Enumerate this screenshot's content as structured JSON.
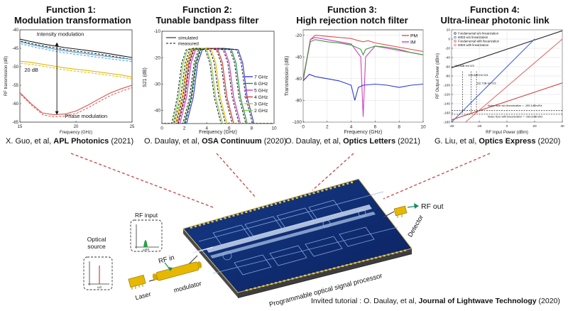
{
  "panels": [
    {
      "heading": "Function 1:",
      "title": "Modulation transformation",
      "cite_authors": "X. Guo, et al, ",
      "cite_journal": "APL Photonics",
      "cite_year": " (2021)",
      "chart_data": {
        "type": "line",
        "xlabel": "Frequency (GHz)",
        "ylabel": "RF transmission (dB)",
        "xlim": [
          15,
          25
        ],
        "ylim": [
          -65,
          -40
        ],
        "xticks": [
          "15",
          "20",
          "25"
        ],
        "yticks": [
          "-40",
          "-45",
          "-50",
          "-55",
          "-60",
          "-65"
        ],
        "annotations": [
          "Intensity modulation",
          "20 dB",
          "Phase modulation"
        ],
        "series": [
          {
            "color": "#1a1a1a",
            "x": [
              15,
              16,
              17,
              18,
              19,
              20,
              21,
              22,
              23,
              24,
              25
            ],
            "y": [
              -42.5,
              -43.2,
              -43.8,
              -44.3,
              -44.8,
              -45.2,
              -45.6,
              -46.0,
              -46.5,
              -47.0,
              -47.5
            ]
          },
          {
            "color": "#4a9ad4",
            "x": [
              15,
              16,
              17,
              18,
              19,
              20,
              21,
              22,
              23,
              24,
              25
            ],
            "y": [
              -43.2,
              -44.0,
              -44.6,
              -45.2,
              -45.7,
              -46.1,
              -46.5,
              -46.9,
              -47.3,
              -47.7,
              -48.0
            ]
          },
          {
            "color": "#e6b800",
            "x": [
              15,
              16,
              17,
              18,
              19,
              20,
              21,
              22,
              23,
              24,
              25
            ],
            "y": [
              -48.5,
              -48.8,
              -49.3,
              -49.8,
              -50.3,
              -50.7,
              -51.0,
              -51.4,
              -51.8,
              -52.2,
              -52.8
            ]
          },
          {
            "color": "#d9534f",
            "x": [
              15,
              16,
              17,
              18,
              19,
              20,
              21,
              22,
              23,
              24,
              25
            ],
            "y": [
              -57.0,
              -60.0,
              -62.5,
              -63.0,
              -62.8,
              -62.0,
              -60.5,
              -58.8,
              -57.2,
              -56.0,
              -55.0
            ]
          }
        ]
      }
    },
    {
      "heading": "Function 2:",
      "title": "Tunable bandpass filter",
      "cite_authors": "O. Daulay, et al, ",
      "cite_journal": "OSA Continuum",
      "cite_year": " (2020)",
      "chart_data": {
        "type": "line",
        "xlabel": "Frequency (GHz)",
        "ylabel": "S21 (dB)",
        "xlim": [
          0,
          10
        ],
        "ylim": [
          -45,
          -10
        ],
        "xticks": [
          "0",
          "2",
          "4",
          "6",
          "8",
          "10"
        ],
        "yticks": [
          "-10",
          "-20",
          "-30",
          "-40"
        ],
        "legend_lines": [
          "simulated",
          "measured"
        ],
        "series": [
          {
            "name": "7 GHz",
            "color": "#3b3bd6",
            "x": [
              0,
              2.2,
              2.8,
              3.2,
              3.6,
              4.4,
              5.5,
              6.8,
              7.2,
              7.6,
              8.2,
              10
            ],
            "y": [
              -45,
              -45,
              -35,
              -22,
              -17,
              -16.5,
              -16.5,
              -17,
              -22,
              -35,
              -45,
              -45
            ]
          },
          {
            "name": "6 GHz",
            "color": "#1e8f4a",
            "x": [
              0,
              2.0,
              2.6,
              3.0,
              3.4,
              4.2,
              5.2,
              6.2,
              6.6,
              7.0,
              7.6,
              10
            ],
            "y": [
              -45,
              -45,
              -35,
              -22,
              -17,
              -16.5,
              -16.5,
              -17,
              -22,
              -35,
              -45,
              -45
            ]
          },
          {
            "name": "5 GHz",
            "color": "#c93ac9",
            "x": [
              0,
              1.6,
              2.2,
              2.6,
              3.0,
              3.8,
              4.8,
              5.6,
              6.0,
              6.4,
              7.0,
              10
            ],
            "y": [
              -45,
              -45,
              -35,
              -22,
              -17,
              -16.5,
              -16.5,
              -17,
              -22,
              -35,
              -45,
              -45
            ]
          },
          {
            "name": "4 GHz",
            "color": "#d63b3b",
            "x": [
              0,
              1.4,
              2.0,
              2.4,
              2.8,
              3.6,
              4.4,
              5.0,
              5.4,
              5.8,
              6.4,
              10
            ],
            "y": [
              -45,
              -45,
              -35,
              -22,
              -17,
              -16.5,
              -16.5,
              -17,
              -22,
              -35,
              -45,
              -45
            ]
          },
          {
            "name": "3 GHz",
            "color": "#e0c000",
            "x": [
              0,
              1.2,
              1.8,
              2.2,
              2.6,
              3.2,
              3.8,
              4.4,
              4.8,
              5.2,
              5.8,
              10
            ],
            "y": [
              -45,
              -45,
              -35,
              -22,
              -17,
              -16.5,
              -16.5,
              -17,
              -22,
              -35,
              -45,
              -45
            ]
          },
          {
            "name": "2 GHz",
            "color": "#7fd04a",
            "x": [
              0,
              1.0,
              1.5,
              1.9,
              2.3,
              2.9,
              3.5,
              4.0,
              4.4,
              4.8,
              5.4,
              10
            ],
            "y": [
              -45,
              -45,
              -35,
              -22,
              -17,
              -16.5,
              -16.5,
              -17,
              -22,
              -35,
              -45,
              -45
            ]
          }
        ]
      }
    },
    {
      "heading": "Function 3:",
      "title": "High rejection notch filter",
      "cite_authors": "O. Daulay, et al, ",
      "cite_journal": "Optics Letters",
      "cite_year": " (2021)",
      "chart_data": {
        "type": "line",
        "xlabel": "Frequency (GHz)",
        "ylabel": "Transmission (dB)",
        "xlim": [
          0,
          10
        ],
        "ylim": [
          -100,
          -15
        ],
        "xticks": [
          "0",
          "2",
          "4",
          "6",
          "8",
          "10"
        ],
        "yticks": [
          "-20",
          "-40",
          "-60",
          "-80",
          "-100"
        ],
        "series": [
          {
            "name": "PM",
            "color": "#e05050",
            "x": [
              0,
              0.6,
              1,
              2,
              3,
              4,
              4.6,
              5,
              5.4,
              6,
              7,
              8,
              9,
              10
            ],
            "y": [
              -62,
              -24,
              -20,
              -21,
              -22,
              -23,
              -25,
              -26,
              -25,
              -27,
              -29,
              -31,
              -33,
              -35
            ]
          },
          {
            "name": "IM",
            "color": "#d040c0",
            "x": [
              0,
              0.6,
              1,
              2,
              3,
              4,
              4.8,
              5.0,
              5.2,
              6,
              7,
              8,
              9,
              10
            ],
            "y": [
              -60,
              -24,
              -22,
              -24,
              -26,
              -28,
              -40,
              -95,
              -40,
              -30,
              -32,
              -34,
              -36,
              -38
            ]
          },
          {
            "color": "#3a9a3a",
            "x": [
              0,
              0.6,
              1,
              2,
              3,
              4,
              4.8,
              5.0,
              5.2,
              6,
              7,
              8,
              9,
              10
            ],
            "y": [
              -60,
              -26,
              -24,
              -26,
              -27,
              -29,
              -33,
              -38,
              -33,
              -30,
              -31,
              -33,
              -36,
              -38
            ]
          },
          {
            "color": "#2a3ad0",
            "x": [
              0,
              0.5,
              1,
              2,
              3,
              4,
              4.3,
              4.6,
              5,
              6,
              7,
              8,
              9,
              10
            ],
            "y": [
              -62,
              -56,
              -58,
              -60,
              -62,
              -66,
              -80,
              -68,
              -66,
              -65,
              -66,
              -68,
              -66,
              -65
            ]
          }
        ]
      }
    },
    {
      "heading": "Function 4:",
      "title": "Ultra-linear photonic link",
      "cite_authors": "G. Liu, et al, ",
      "cite_journal": "Optics Express",
      "cite_year": " (2020)",
      "chart_data": {
        "type": "line",
        "xlabel": "RF Input Power (dBm)",
        "ylabel": "RF Output Power (dBm)",
        "xlim": [
          -40,
          40
        ],
        "ylim": [
          -180,
          20
        ],
        "xticks": [
          "-40",
          "-20",
          "0",
          "20",
          "40"
        ],
        "yticks": [
          "20",
          "0",
          "-20",
          "-40",
          "-60",
          "-80",
          "-100",
          "-120",
          "-140",
          "-160",
          "-180"
        ],
        "legend": [
          "Fundamental w/o linearization",
          "IMD3 w/o linearization",
          "Fundamental with linearization",
          "IMD3 with linearization"
        ],
        "annotations": [
          "105.8dB·Hz^2/3",
          "106.5dB·Hz^2/3",
          "112.7dB·Hz^2/3",
          "Noise floor w/o linearization = -155.1dBm/Hz",
          "Noise floor with linearization = -163.6dBm/Hz"
        ],
        "series": [
          {
            "name": "Fundamental w/o linearization",
            "color": "#222222",
            "x": [
              -40,
              40
            ],
            "y": [
              -62,
              18
            ]
          },
          {
            "name": "IMD3 w/o linearization",
            "color": "#3a6ad0",
            "x": [
              -40,
              20
            ],
            "y": [
              -180,
              0
            ]
          },
          {
            "name": "Fundamental with linearization",
            "color": "#d04040",
            "x": [
              -40,
              40
            ],
            "y": [
              -175,
              -95
            ]
          },
          {
            "name": "IMD3 with linearization",
            "color": "#e07070",
            "x": [
              -30,
              40
            ],
            "y": [
              -180,
              0
            ]
          }
        ]
      }
    }
  ],
  "diagram": {
    "rf_in": "RF in",
    "rf_input": "RF input",
    "rf_out": "RF out",
    "optical_source": "Optical\nsource",
    "laser": "Laser",
    "modulator": "modulator",
    "detector": "Detector",
    "chip_label": "Programmable optical signal processor",
    "omega_0": "ω0",
    "omega_rf": "ωRF"
  },
  "footer": {
    "prefix": "Invited tutorial : O. Daulay, et al, ",
    "journal": "Journal of Lightwave Technology",
    "year": " (2020)"
  },
  "colors": {
    "chip": "#0d2a6b",
    "chip_edge": "#1b3f8f",
    "waveguide": "#c8d8f0",
    "gold": "#e6b800",
    "red_dash": "#d04040"
  }
}
